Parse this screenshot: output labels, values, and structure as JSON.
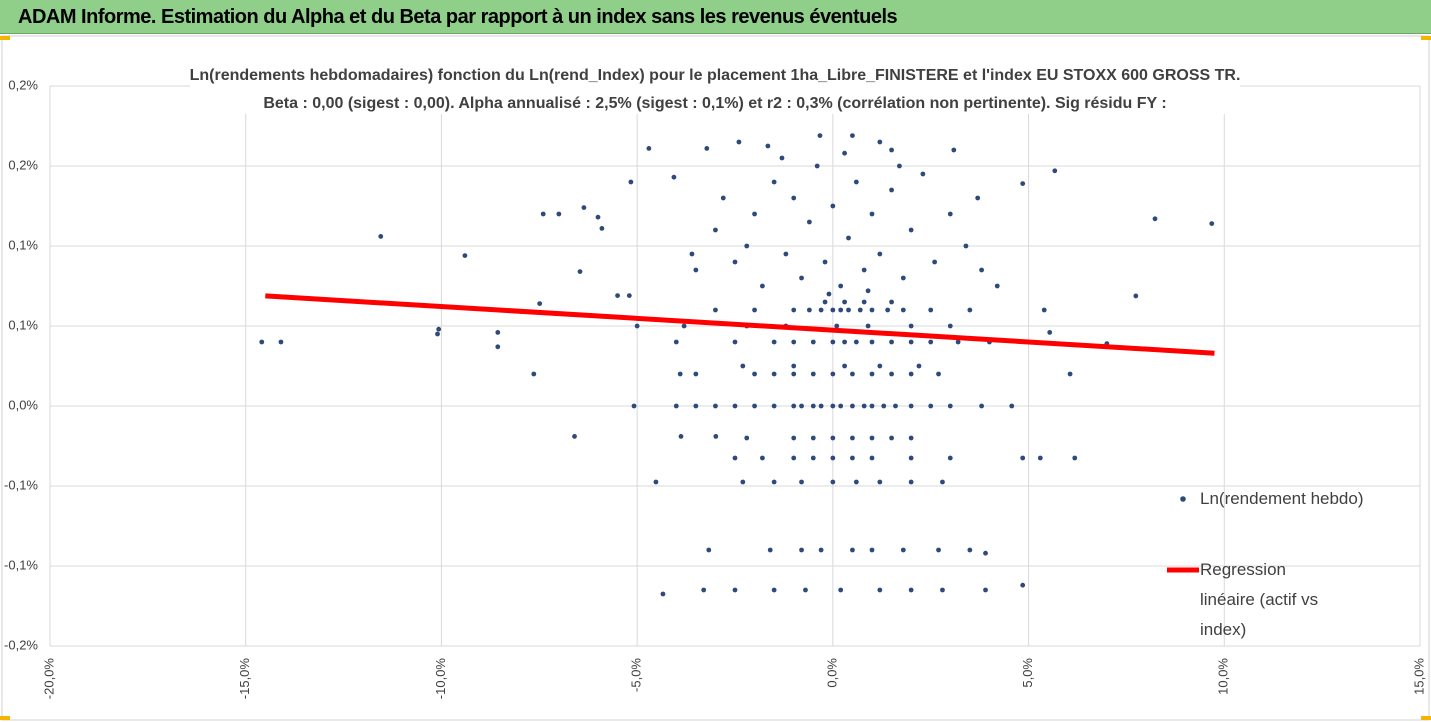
{
  "header": {
    "title": "ADAM Informe. Estimation du Alpha et du Beta par rapport à un index sans les revenus éventuels"
  },
  "chart_data": {
    "type": "scatter",
    "title": "Ln(rendements hebdomadaires) fonction du Ln(rend_Index) pour le placement 1ha_Libre_FINISTERE et l'index EU STOXX 600 GROSS TR.",
    "subtitle": "Beta : 0,00 (sigest : 0,00). Alpha annualisé : 2,5% (sigest : 0,1%) et r2 : 0,3% (corrélation non pertinente). Sig résidu FY :",
    "xlim": [
      -20,
      15
    ],
    "xticks": [
      {
        "value": -20,
        "label": "-20,0%"
      },
      {
        "value": -15,
        "label": "-15,0%"
      },
      {
        "value": -10,
        "label": "-10,0%"
      },
      {
        "value": -5,
        "label": "-5,0%"
      },
      {
        "value": 0,
        "label": "0,0%"
      },
      {
        "value": 5,
        "label": "5,0%"
      },
      {
        "value": 10,
        "label": "10,0%"
      },
      {
        "value": 15,
        "label": "15,0%"
      }
    ],
    "ylim": [
      -0.15,
      0.2
    ],
    "yticks": [
      {
        "value": -0.15,
        "label": "-0,2%"
      },
      {
        "value": -0.1,
        "label": "-0,1%"
      },
      {
        "value": -0.05,
        "label": "-0,1%"
      },
      {
        "value": 0,
        "label": "0,0%"
      },
      {
        "value": 0.05,
        "label": "0,1%"
      },
      {
        "value": 0.1,
        "label": "0,1%"
      },
      {
        "value": 0.15,
        "label": "0,2%"
      },
      {
        "value": 0.2,
        "label": "0,2%"
      }
    ],
    "grid": true,
    "series": [
      {
        "name": "Ln(rendement hebdo)",
        "type": "scatter",
        "color": "#2f4a7a",
        "x": [
          -14.59,
          -14.1,
          -11.55,
          -10.07,
          -10.1,
          -9.4,
          -8.56,
          -8.56,
          -7.64,
          -7.49,
          -7.4,
          -7.0,
          -6.6,
          -6.46,
          -6.36,
          -6.0,
          -5.9,
          -5.5,
          -5.2,
          -5.16,
          -5.08,
          -5.0,
          -4.7,
          -4.52,
          -4.34,
          -4.06,
          -3.88,
          -3.9,
          -3.6,
          -3.22,
          -3.17,
          -3.3,
          -2.99,
          -2.4,
          -1.66,
          -1.5,
          -0.33,
          0.5,
          1.2,
          1.5,
          3.09,
          3.7,
          4.85,
          5.67,
          5.54,
          5.4,
          6.06,
          6.18,
          7.0,
          7.74,
          8.23,
          9.68,
          4.85,
          4.85,
          5.3,
          4.57,
          3.9,
          3.9,
          4.0,
          -4.0,
          -3.5,
          -3.0,
          -2.5,
          -2.0,
          -1.5,
          -1.0,
          -0.8,
          -0.5,
          -0.3,
          0,
          0.2,
          0.5,
          0.8,
          1.0,
          1.3,
          1.6,
          2.0,
          2.5,
          3.0,
          3.8,
          -3.5,
          -2.0,
          -1.5,
          -1.0,
          -0.5,
          0,
          0.5,
          1.0,
          1.5,
          2.0,
          2.7,
          -2.3,
          -1.0,
          0.3,
          1.2,
          2.2,
          -4.0,
          -2.5,
          -1.5,
          -1.0,
          -0.5,
          0,
          0.3,
          0.6,
          1.0,
          1.5,
          2.0,
          2.5,
          3.2,
          -3.0,
          -2.0,
          -1.0,
          -0.6,
          -0.3,
          0,
          0.2,
          0.4,
          0.7,
          1.0,
          1.4,
          1.8,
          2.5,
          3.5,
          -0.2,
          0.3,
          0.8,
          1.5,
          -3.8,
          -2.2,
          -1.2,
          0.1,
          0.9,
          2.0,
          3.0,
          -2.2,
          -1.0,
          -0.5,
          0,
          0.5,
          1.0,
          1.5,
          2.0,
          -2.5,
          -1.8,
          -1.0,
          -0.5,
          0,
          0.5,
          1.0,
          2.0,
          3.0,
          -2.3,
          -1.5,
          -0.8,
          0,
          0.6,
          1.2,
          2.0,
          2.8,
          -1.6,
          -0.8,
          -0.3,
          0.5,
          1.0,
          1.8,
          2.7,
          3.5,
          -2.5,
          -0.7,
          0.2,
          1.2,
          2.0,
          2.8,
          -3.5,
          -3,
          -2.8,
          -2.5,
          -2.2,
          -2,
          -1.8,
          -1.5,
          -1.2,
          -1,
          -0.8,
          -0.6,
          -0.4,
          -0.2,
          0,
          0.2,
          0.4,
          0.6,
          0.8,
          1,
          1.2,
          1.5,
          1.8,
          2,
          2.3,
          2.6,
          3,
          3.4,
          3.8,
          4.2,
          -1.3,
          0.3,
          1.7,
          -0.1,
          0.9
        ],
        "values": [
          0.04,
          0.04,
          0.106,
          0.048,
          0.045,
          0.094,
          0.046,
          0.037,
          0.02,
          0.064,
          0.12,
          0.12,
          -0.019,
          0.084,
          0.124,
          0.118,
          0.111,
          0.069,
          0.069,
          0.14,
          0,
          0.05,
          0.161,
          -0.0475,
          -0.1175,
          0.143,
          -0.019,
          0.02,
          0.095,
          0.161,
          -0.09,
          -0.115,
          -0.019,
          0.165,
          0.1625,
          -0.115,
          0.169,
          0.169,
          0.165,
          0.16,
          0.16,
          0.13,
          0.139,
          0.147,
          0.046,
          0.06,
          0.02,
          -0.0325,
          0.039,
          0.0688,
          0.117,
          0.114,
          -0.112,
          -0.0325,
          -0.0325,
          0,
          -0.092,
          -0.115,
          0.04,
          0,
          0,
          0,
          0,
          0,
          0,
          0,
          0,
          0,
          0,
          0,
          0,
          0,
          0,
          0,
          0,
          0,
          0,
          0,
          0,
          0,
          0.02,
          0.02,
          0.02,
          0.02,
          0.02,
          0.02,
          0.02,
          0.02,
          0.02,
          0.02,
          0.02,
          0.025,
          0.025,
          0.025,
          0.025,
          0.025,
          0.04,
          0.04,
          0.04,
          0.04,
          0.04,
          0.04,
          0.04,
          0.04,
          0.04,
          0.04,
          0.04,
          0.04,
          0.04,
          0.06,
          0.06,
          0.06,
          0.06,
          0.06,
          0.06,
          0.06,
          0.06,
          0.06,
          0.06,
          0.06,
          0.06,
          0.06,
          0.06,
          0.065,
          0.065,
          0.065,
          0.065,
          0.05,
          0.05,
          0.05,
          0.05,
          0.05,
          0.05,
          0.05,
          -0.02,
          -0.02,
          -0.02,
          -0.02,
          -0.02,
          -0.02,
          -0.02,
          -0.02,
          -0.0325,
          -0.0325,
          -0.0325,
          -0.0325,
          -0.0325,
          -0.0325,
          -0.0325,
          -0.0325,
          -0.0325,
          -0.0475,
          -0.0475,
          -0.0475,
          -0.0475,
          -0.0475,
          -0.0475,
          -0.0475,
          -0.0475,
          -0.09,
          -0.09,
          -0.09,
          -0.09,
          -0.09,
          -0.09,
          -0.09,
          -0.09,
          -0.115,
          -0.115,
          -0.115,
          -0.115,
          -0.115,
          -0.115,
          0.085,
          0.11,
          0.13,
          0.09,
          0.1,
          0.12,
          0.075,
          0.14,
          0.095,
          0.13,
          0.08,
          0.115,
          0.15,
          0.09,
          0.125,
          0.075,
          0.105,
          0.14,
          0.085,
          0.12,
          0.095,
          0.135,
          0.08,
          0.11,
          0.145,
          0.09,
          0.12,
          0.1,
          0.085,
          0.075,
          0.155,
          0.158,
          0.15,
          0.07,
          0.072
        ]
      },
      {
        "name": "Regression linéaire (actif vs index)",
        "type": "line",
        "color": "#ff0000",
        "x": [
          -14.5,
          9.75
        ],
        "values": [
          0.0688,
          0.033
        ]
      }
    ]
  }
}
